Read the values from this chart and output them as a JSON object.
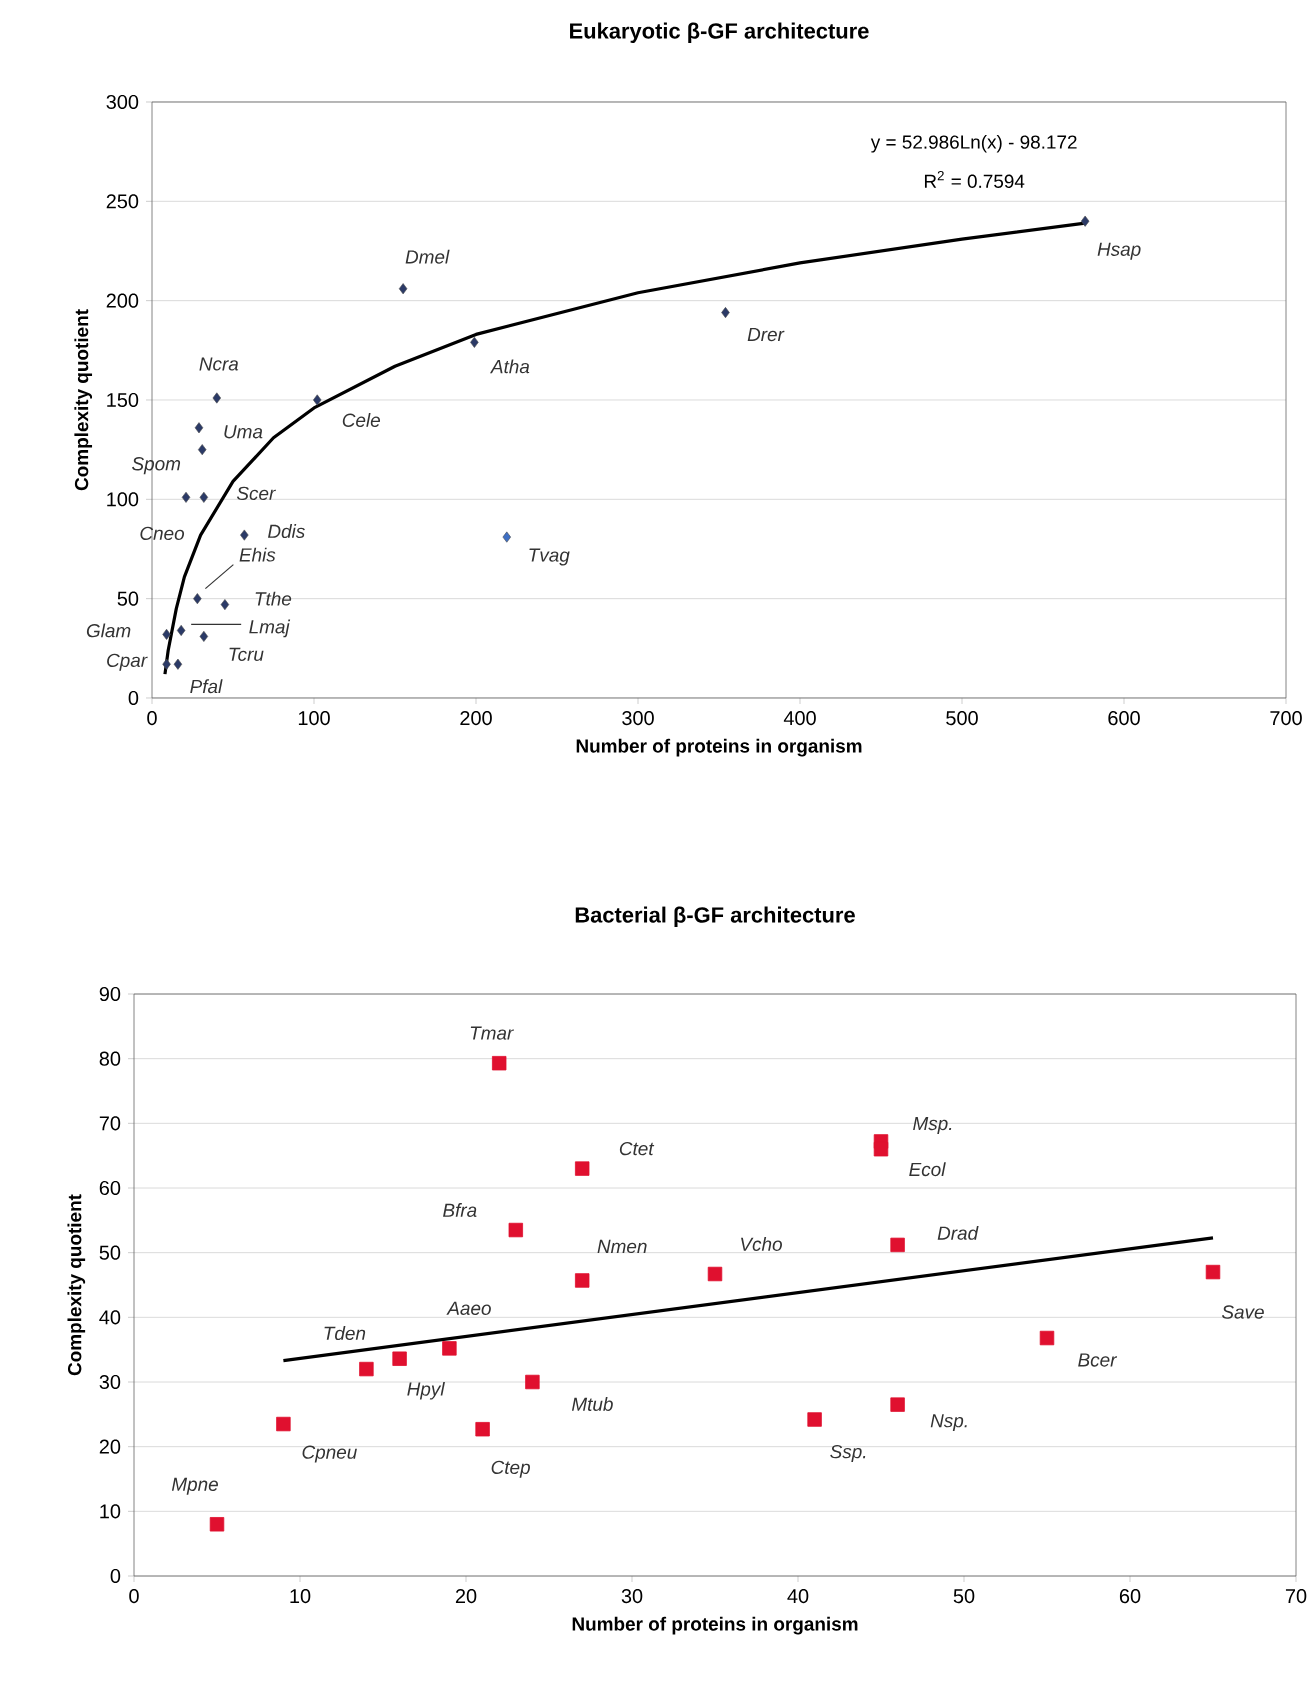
{
  "chart_data": [
    {
      "type": "scatter",
      "title": "Eukaryotic β-GF architecture",
      "xlabel": "Number of proteins in organism",
      "ylabel": "Complexity quotient",
      "xlim": [
        0,
        700
      ],
      "ylim": [
        0,
        300
      ],
      "xticks": [
        0,
        100,
        200,
        300,
        400,
        500,
        600,
        700
      ],
      "yticks": [
        0,
        50,
        100,
        150,
        200,
        250,
        300
      ],
      "grid": "y",
      "series": [
        {
          "type": "scatter",
          "marker": "diamond",
          "x": [
            155,
            199,
            102,
            40,
            29,
            31,
            21,
            32,
            57,
            28,
            45,
            18,
            9,
            32,
            9,
            16,
            219,
            354,
            576
          ],
          "values": [
            206,
            179,
            150,
            151,
            136,
            125,
            101,
            101,
            82,
            50,
            47,
            34,
            32,
            31,
            17,
            17,
            81,
            194,
            240
          ],
          "colors": [
            "#2b3a67",
            "#2b3a67",
            "#2b3a67",
            "#2b3a67",
            "#2b3a67",
            "#2b3a67",
            "#2b3a67",
            "#2b3a67",
            "#2b3a67",
            "#2b3a67",
            "#2b3a67",
            "#2b3a67",
            "#2b3a67",
            "#2b3a67",
            "#2b3a67",
            "#2b3a67",
            "#3e6fc4",
            "#2b3a67",
            "#2b3a67"
          ]
        },
        {
          "type": "line",
          "color": "#000000",
          "x": [
            8,
            10,
            15,
            20,
            30,
            50,
            75,
            100,
            150,
            200,
            300,
            400,
            500,
            576
          ],
          "values": [
            12,
            24,
            45,
            61,
            82,
            109,
            131,
            146,
            167,
            183,
            204,
            219,
            231,
            239
          ]
        }
      ],
      "annotations": [
        {
          "text": "Dmel",
          "x": 155,
          "y": 206
        },
        {
          "text": "Atha",
          "x": 199,
          "y": 179
        },
        {
          "text": "Cele",
          "x": 102,
          "y": 150
        },
        {
          "text": "Ncra",
          "x": 40,
          "y": 151
        },
        {
          "text": "Uma",
          "x": 29,
          "y": 136
        },
        {
          "text": "Spom",
          "x": 31,
          "y": 125
        },
        {
          "text": "Cneo",
          "x": 21,
          "y": 101
        },
        {
          "text": "Scer",
          "x": 32,
          "y": 101
        },
        {
          "text": "Ddis",
          "x": 57,
          "y": 82
        },
        {
          "text": "Ehis",
          "x": 28,
          "y": 50
        },
        {
          "text": "Tthe",
          "x": 45,
          "y": 47
        },
        {
          "text": "Lmaj",
          "x": 18,
          "y": 34
        },
        {
          "text": "Glam",
          "x": 9,
          "y": 32
        },
        {
          "text": "Tcru",
          "x": 32,
          "y": 31
        },
        {
          "text": "Cpar",
          "x": 9,
          "y": 17
        },
        {
          "text": "Pfal",
          "x": 16,
          "y": 17
        },
        {
          "text": "Tvag",
          "x": 219,
          "y": 81
        },
        {
          "text": "Drer",
          "x": 354,
          "y": 194
        },
        {
          "text": "Hsap",
          "x": 576,
          "y": 240
        },
        "y = 52.986Ln(x) - 98.172",
        "R$^{2}$ = 0.7594"
      ]
    },
    {
      "type": "scatter",
      "title": "Bacterial β-GF architecture",
      "xlabel": "Number of proteins in organism",
      "ylabel": "Complexity quotient",
      "xlim": [
        0,
        70
      ],
      "ylim": [
        0,
        90
      ],
      "xticks": [
        0,
        10,
        20,
        30,
        40,
        50,
        60,
        70
      ],
      "yticks": [
        0,
        10,
        20,
        30,
        40,
        50,
        60,
        70,
        80,
        90
      ],
      "grid": "y",
      "series": [
        {
          "type": "scatter",
          "marker": "square",
          "color": "#e0102f",
          "x": [
            22,
            27,
            23,
            27,
            19,
            16,
            14,
            24,
            21,
            9,
            5,
            35,
            45,
            45,
            46,
            65,
            55,
            46,
            41
          ],
          "values": [
            79.3,
            63,
            53.5,
            45.7,
            35.2,
            33.6,
            32,
            30,
            22.7,
            23.5,
            8,
            46.7,
            67.2,
            66,
            51.2,
            47,
            36.8,
            26.5,
            24.2
          ]
        },
        {
          "type": "line",
          "color": "#000000",
          "x": [
            9,
            65
          ],
          "values": [
            33.3,
            52.3
          ]
        }
      ],
      "annotations": [
        {
          "text": "Tmar",
          "x": 22,
          "y": 79.3
        },
        {
          "text": "Ctet",
          "x": 27,
          "y": 63
        },
        {
          "text": "Bfra",
          "x": 23,
          "y": 53.5
        },
        {
          "text": "Nmen",
          "x": 27,
          "y": 45.7
        },
        {
          "text": "Aaeo",
          "x": 19,
          "y": 35.2
        },
        {
          "text": "Hpyl",
          "x": 16,
          "y": 33.6
        },
        {
          "text": "Tden",
          "x": 14,
          "y": 32
        },
        {
          "text": "Mtub",
          "x": 24,
          "y": 30
        },
        {
          "text": "Ctep",
          "x": 21,
          "y": 22.7
        },
        {
          "text": "Cpneu",
          "x": 9,
          "y": 23.5
        },
        {
          "text": "Mpne",
          "x": 5,
          "y": 8
        },
        {
          "text": "Vcho",
          "x": 35,
          "y": 46.7
        },
        {
          "text": "Msp.",
          "x": 45,
          "y": 67.2
        },
        {
          "text": "Ecol",
          "x": 45,
          "y": 66
        },
        {
          "text": "Drad",
          "x": 46,
          "y": 51.2
        },
        {
          "text": "Save",
          "x": 65,
          "y": 47
        },
        {
          "text": "Bcer",
          "x": 55,
          "y": 36.8
        },
        {
          "text": "Nsp.",
          "x": 46,
          "y": 26.5
        },
        {
          "text": "Ssp.",
          "x": 41,
          "y": 24.2
        }
      ]
    }
  ]
}
